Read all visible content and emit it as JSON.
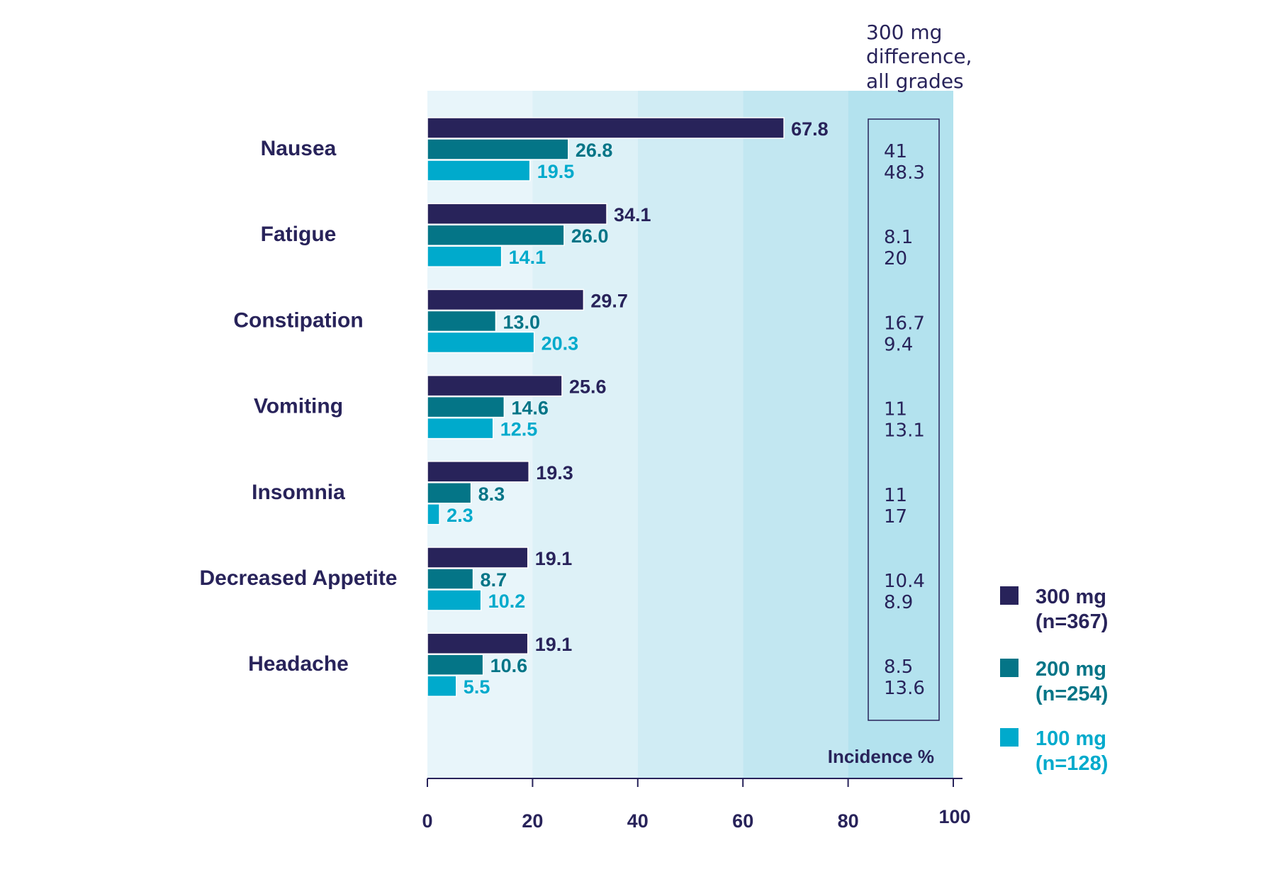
{
  "chart_data": {
    "type": "bar",
    "orientation": "horizontal",
    "categories": [
      "Nausea",
      "Fatigue",
      "Constipation",
      "Vomiting",
      "Insomnia",
      "Decreased Appetite",
      "Headache"
    ],
    "series": [
      {
        "name": "300 mg (n=367)",
        "label_line1": "300 mg",
        "label_line2": "(n=367)",
        "color": "#28235a",
        "values": [
          67.8,
          34.1,
          29.7,
          25.6,
          19.3,
          19.1,
          19.1
        ],
        "labels": [
          "67.8",
          "34.1",
          "29.7",
          "25.6",
          "19.3",
          "19.1",
          "19.1"
        ]
      },
      {
        "name": "200 mg (n=254)",
        "label_line1": "200 mg",
        "label_line2": "(n=254)",
        "color": "#047587",
        "values": [
          26.8,
          26.0,
          13.0,
          14.6,
          8.3,
          8.7,
          10.6
        ],
        "labels": [
          "26.8",
          "26.0",
          "13.0",
          "14.6",
          "8.3",
          "8.7",
          "10.6"
        ]
      },
      {
        "name": "100 mg (n=128)",
        "label_line1": "100 mg",
        "label_line2": "(n=128)",
        "color": "#00aacc",
        "values": [
          19.5,
          14.1,
          20.3,
          12.5,
          2.3,
          10.2,
          5.5
        ],
        "labels": [
          "19.5",
          "14.1",
          "20.3",
          "12.5",
          "2.3",
          "10.2",
          "5.5"
        ]
      }
    ],
    "xlim": [
      0,
      100
    ],
    "xticks": [
      "0",
      "20",
      "40",
      "60",
      "80",
      "100"
    ],
    "xlabel": "Incidence %",
    "difference_column": {
      "header": [
        "300 mg",
        "difference,",
        "all grades"
      ],
      "rows": [
        [
          "41",
          "48.3"
        ],
        [
          "8.1",
          "20"
        ],
        [
          "16.7",
          "9.4"
        ],
        [
          "11",
          "13.1"
        ],
        [
          "11",
          "17"
        ],
        [
          "10.4",
          "8.9"
        ],
        [
          "8.5",
          "13.6"
        ]
      ]
    },
    "legend_position": "right",
    "colors": {
      "text": "#28235a",
      "band_light": "#e9f6fb",
      "band_dark": "#aadfeb"
    }
  }
}
